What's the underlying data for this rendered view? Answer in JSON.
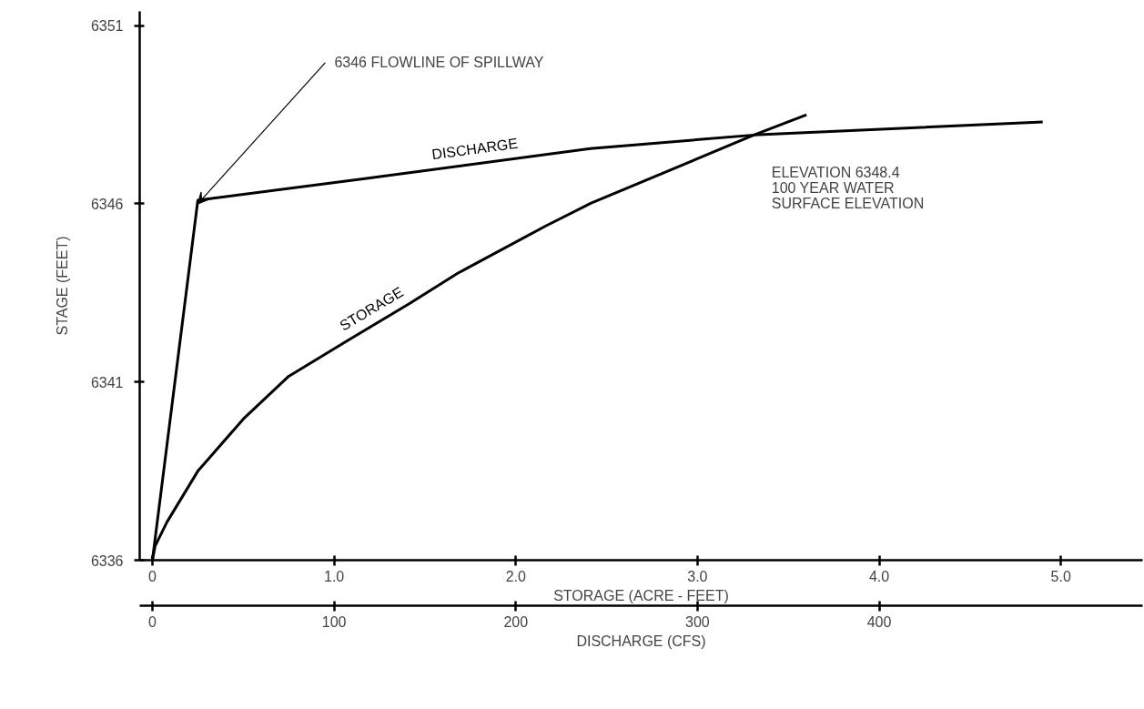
{
  "chart_data": {
    "type": "line",
    "xlabel": "STORAGE (ACRE - FEET)",
    "x2label": "DISCHARGE (CFS)",
    "ylabel": "STAGE (FEET)",
    "xlim": [
      -0.07,
      5.45
    ],
    "xticks": [
      0,
      {
        "value": 1,
        "label": "1.0"
      },
      {
        "value": 2,
        "label": "2.0"
      },
      {
        "value": 3,
        "label": "3.0"
      },
      {
        "value": 4,
        "label": "4.0"
      },
      {
        "value": 5,
        "label": "5.0"
      }
    ],
    "x2lim": [
      -7,
      545
    ],
    "x2ticks": [
      0,
      100,
      200,
      300,
      400
    ],
    "ylim": [
      6336,
      6351.4
    ],
    "yticks": [
      6336,
      6341,
      6346,
      6351
    ],
    "grid": false,
    "marker": "none",
    "line_style": "solid",
    "series": [
      {
        "name": "DISCHARGE",
        "color": "#000000",
        "axis": "x2",
        "x": [
          0,
          25,
          116,
          241,
          331,
          490
        ],
        "values": [
          6336,
          6346.1,
          6346.7,
          6347.55,
          6347.93,
          6348.3
        ]
      },
      {
        "name": "STORAGE",
        "color": "#000000",
        "x": [
          0,
          0.015,
          0.08,
          0.25,
          0.5,
          0.75,
          1.08,
          1.415,
          1.68,
          2.165,
          2.415,
          3.31,
          3.6
        ],
        "values": [
          6336,
          6336.4,
          6337.07,
          6338.5,
          6339.96,
          6341.16,
          6342.18,
          6343.2,
          6344.05,
          6345.38,
          6346.02,
          6347.93,
          6348.5
        ]
      }
    ],
    "annotations": [
      {
        "text": "6346 FLOWLINE OF SPILLWAY",
        "x": 0.25,
        "y": 6346
      },
      "ELEVATION 6348.4\n100 YEAR WATER\nSURFACE ELEVATION"
    ]
  }
}
